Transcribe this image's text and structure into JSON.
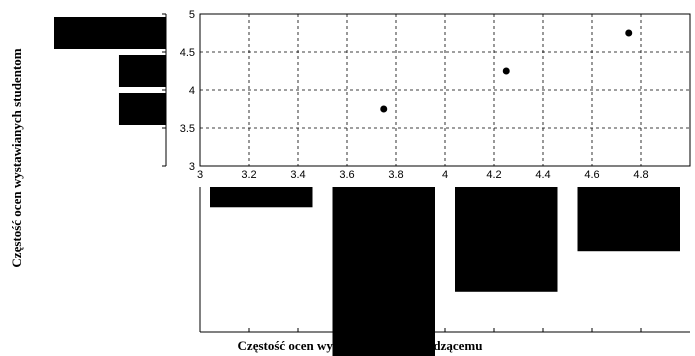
{
  "chart_data": [
    {
      "type": "scatter",
      "x": [
        3.75,
        4.25,
        4.75
      ],
      "y": [
        3.75,
        4.25,
        4.75
      ],
      "xlim": [
        3,
        5
      ],
      "ylim": [
        3,
        5
      ],
      "xticks": [
        "3",
        "3.2",
        "3.4",
        "3.6",
        "3.8",
        "4",
        "4.2",
        "4.4",
        "4.6",
        "4.8"
      ],
      "yticks": [
        "3",
        "3.5",
        "4",
        "4.5",
        "5"
      ],
      "grid": true
    },
    {
      "type": "bar",
      "orientation": "vertical-down",
      "bins": [
        {
          "from": 3.0,
          "to": 3.5,
          "value": 0.12
        },
        {
          "from": 3.5,
          "to": 4.0,
          "value": 1.0
        },
        {
          "from": 4.0,
          "to": 4.5,
          "value": 0.62
        },
        {
          "from": 4.5,
          "to": 5.0,
          "value": 0.38
        }
      ],
      "xlabel": "Częstość ocen wystawianych prowadzącemu"
    },
    {
      "type": "bar",
      "orientation": "horizontal-left",
      "bins": [
        {
          "from": 3.5,
          "to": 4.0,
          "value": 0.42
        },
        {
          "from": 4.0,
          "to": 4.5,
          "value": 0.42
        },
        {
          "from": 4.5,
          "to": 5.0,
          "value": 1.0
        }
      ],
      "ylabel": "Częstość ocen wystawianych studentom"
    }
  ]
}
